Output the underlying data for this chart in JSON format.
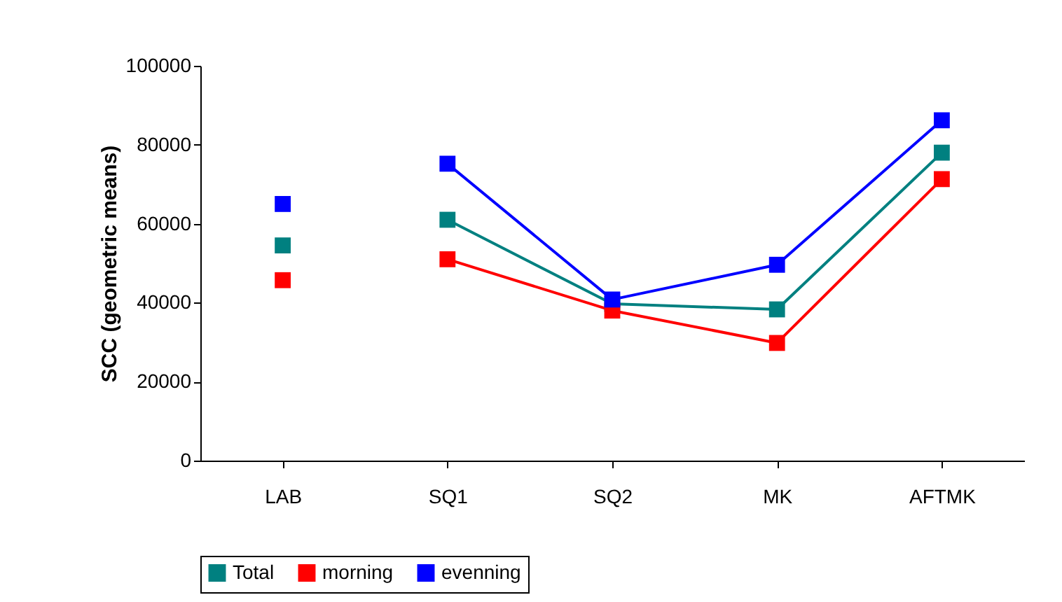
{
  "chart_data": {
    "type": "line",
    "ylabel": "SCC (geometric means)",
    "categories": [
      "LAB",
      "SQ1",
      "SQ2",
      "MK",
      "AFTMK"
    ],
    "series": [
      {
        "name": "Total",
        "color": "#008080",
        "values": [
          null,
          61000,
          39700,
          38300,
          78000
        ]
      },
      {
        "name": "morning",
        "color": "#ff0000",
        "values": [
          null,
          51000,
          38000,
          29800,
          71300
        ]
      },
      {
        "name": "evenning",
        "color": "#0000ff",
        "values": [
          null,
          75200,
          40800,
          49600,
          86200
        ]
      },
      {
        "type": "scatter",
        "color": "#008080",
        "values": [
          54500,
          null,
          null,
          null,
          null
        ]
      },
      {
        "type": "scatter",
        "color": "#ff0000",
        "values": [
          45700,
          null,
          null,
          null,
          null
        ]
      },
      {
        "type": "scatter",
        "color": "#0000ff",
        "values": [
          65000,
          null,
          null,
          null,
          null
        ]
      }
    ],
    "ylim": [
      0,
      100000
    ],
    "yticks": [
      0,
      20000,
      40000,
      60000,
      80000,
      100000
    ],
    "marker": "square",
    "legend": "bottom",
    "grid": false
  }
}
